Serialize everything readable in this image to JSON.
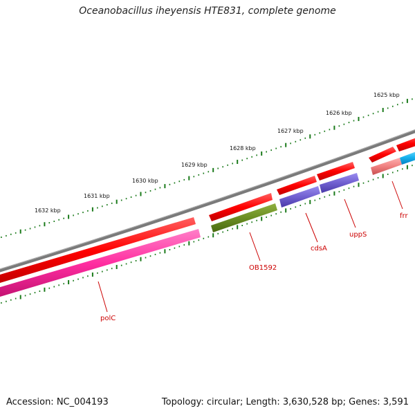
{
  "title": "Oceanobacillus iheyensis HTE831, complete genome",
  "accession": "Accession: NC_004193",
  "stats": "Topology: circular; Length: 3,630,528 bp; Genes: 3,591",
  "kbp_labels": [
    "1625 kbp",
    "1626 kbp",
    "1627 kbp",
    "1628 kbp",
    "1629 kbp",
    "1630 kbp",
    "1631 kbp",
    "1632 kbp"
  ],
  "gene_labels": [
    "polC",
    "OB1592",
    "cdsA",
    "uppS",
    "frr"
  ],
  "colors": {
    "backbone": "#7a7a7a",
    "cds_red": "#ff0000",
    "polC_pink": "#ff2da0",
    "ob1592_green": "#6b8e23",
    "cdsA_uppS_purple": "#7060d0",
    "frr_pink": "#f08080",
    "cyan": "#19b5f0",
    "tick_green": "#1a7a1a",
    "label_red": "#cc0000"
  }
}
